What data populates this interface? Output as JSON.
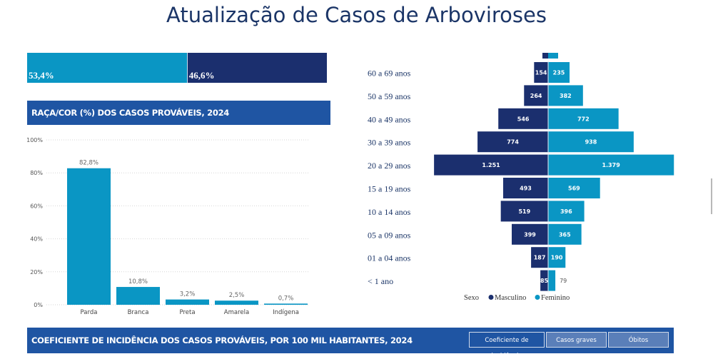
{
  "header": {
    "title": "Atualização de Casos de Arboviroses"
  },
  "colors": {
    "navy": "#1b2f6e",
    "cyan": "#0a96c4",
    "banner": "#1f55a3",
    "title": "#1b3567"
  },
  "sex_split": {
    "segments": [
      {
        "label": "53,4%",
        "value": 53.4,
        "color": "#0a96c4"
      },
      {
        "label": "46,6%",
        "value": 46.6,
        "color": "#1b2f6e"
      }
    ]
  },
  "race_banner": {
    "title": "RAÇA/COR (%) DOS CASOS PROVÁVEIS, 2024"
  },
  "incidence_banner": {
    "title": "COEFICIENTE DE INCIDÊNCIA DOS CASOS PROVÁVEIS, POR 100 MIL HABITANTES, 2024",
    "buttons": [
      {
        "label": "Coeficiente de incidência"
      },
      {
        "label": "Casos graves"
      },
      {
        "label": "Óbitos"
      }
    ]
  },
  "chart_data": [
    {
      "type": "bar",
      "title": "RAÇA/COR (%) DOS CASOS PROVÁVEIS, 2024",
      "categories": [
        "Parda",
        "Branca",
        "Preta",
        "Amarela",
        "Indígena"
      ],
      "values": [
        82.8,
        10.8,
        3.2,
        2.5,
        0.7
      ],
      "data_labels": [
        "82,8%",
        "10,8%",
        "3,2%",
        "2,5%",
        "0,7%"
      ],
      "yticks": [
        "0%",
        "20%",
        "40%",
        "60%",
        "80%",
        "100%"
      ],
      "ylim": [
        0,
        100
      ],
      "grid": true,
      "color": "#0a96c4"
    },
    {
      "type": "bar",
      "orientation": "horizontal-pyramid",
      "categories": [
        "",
        "60 a 69 anos",
        "50 a 59 anos",
        "40 a 49 anos",
        "30 a 39 anos",
        "20 a 29 anos",
        "15 a 19 anos",
        "10 a 14 anos",
        "05 a 09 anos",
        "01 a 04 anos",
        "< 1 ano"
      ],
      "series": [
        {
          "name": "Masculino",
          "color": "#1b2f6e",
          "values": [
            60,
            154,
            264,
            546,
            774,
            1251,
            493,
            519,
            399,
            187,
            85
          ],
          "labels": [
            "",
            "154",
            "264",
            "546",
            "774",
            "1.251",
            "493",
            "519",
            "399",
            "187",
            "85"
          ]
        },
        {
          "name": "Feminino",
          "color": "#0a96c4",
          "values": [
            110,
            235,
            382,
            772,
            938,
            1379,
            569,
            396,
            365,
            190,
            79
          ],
          "labels": [
            "",
            "235",
            "382",
            "772",
            "938",
            "1.379",
            "569",
            "396",
            "365",
            "190",
            "79"
          ]
        }
      ],
      "legend": {
        "title": "Sexo",
        "position": "bottom"
      }
    }
  ]
}
